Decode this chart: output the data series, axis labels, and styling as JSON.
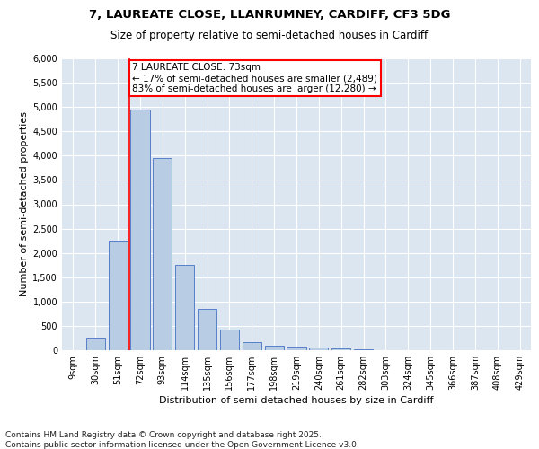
{
  "title1": "7, LAUREATE CLOSE, LLANRUMNEY, CARDIFF, CF3 5DG",
  "title2": "Size of property relative to semi-detached houses in Cardiff",
  "xlabel": "Distribution of semi-detached houses by size in Cardiff",
  "ylabel": "Number of semi-detached properties",
  "footnote": "Contains HM Land Registry data © Crown copyright and database right 2025.\nContains public sector information licensed under the Open Government Licence v3.0.",
  "categories": [
    "9sqm",
    "30sqm",
    "51sqm",
    "72sqm",
    "93sqm",
    "114sqm",
    "135sqm",
    "156sqm",
    "177sqm",
    "198sqm",
    "219sqm",
    "240sqm",
    "261sqm",
    "282sqm",
    "303sqm",
    "324sqm",
    "345sqm",
    "366sqm",
    "387sqm",
    "408sqm",
    "429sqm"
  ],
  "values": [
    5,
    250,
    2250,
    4950,
    3950,
    1750,
    850,
    420,
    175,
    100,
    75,
    60,
    30,
    10,
    5,
    2,
    1,
    1,
    0,
    0,
    0
  ],
  "bar_color": "#b8cce4",
  "bar_edge_color": "#4472c4",
  "bar_width": 0.85,
  "property_sqm": 73,
  "pct_smaller": 17,
  "n_smaller": "2,489",
  "pct_larger": 83,
  "n_larger": "12,280",
  "annotation_label": "7 LAUREATE CLOSE: 73sqm",
  "annotation_line1": "← 17% of semi-detached houses are smaller (2,489)",
  "annotation_line2": "83% of semi-detached houses are larger (12,280) →",
  "ylim": [
    0,
    6000
  ],
  "yticks": [
    0,
    500,
    1000,
    1500,
    2000,
    2500,
    3000,
    3500,
    4000,
    4500,
    5000,
    5500,
    6000
  ],
  "plot_bg_color": "#dce6f1",
  "title1_fontsize": 9.5,
  "title2_fontsize": 8.5,
  "axis_label_fontsize": 8,
  "tick_fontsize": 7,
  "footnote_fontsize": 6.5,
  "annotation_fontsize": 7.5
}
